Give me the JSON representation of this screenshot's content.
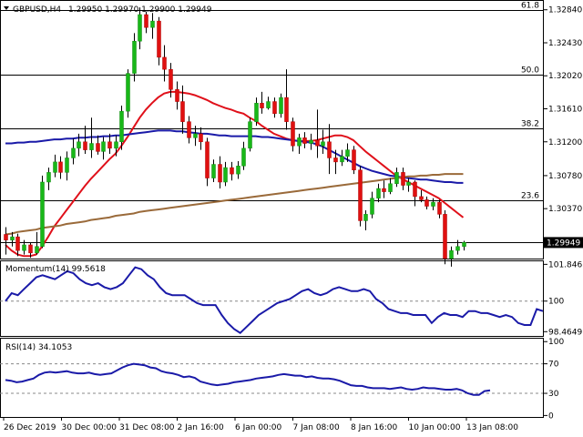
{
  "chart_data": [
    {
      "type": "candlestick",
      "header": {
        "symbol": "GBPUSD,H4",
        "ohlc": "1.29950 1.29970 1.29900 1.29949"
      },
      "y_ticks": [
        "1.32840",
        "1.32430",
        "1.32020",
        "1.31610",
        "1.31200",
        "1.30780",
        "1.30370",
        "1.29950"
      ],
      "ylim": [
        1.2975,
        1.3295
      ],
      "current_price": "1.29949",
      "current_price_value": 1.29949,
      "fib_levels": [
        {
          "label": "61.8",
          "value": 1.3284
        },
        {
          "label": "50.0",
          "value": 1.3203
        },
        {
          "label": "38.2",
          "value": 1.3137
        },
        {
          "label": "23.6",
          "value": 1.3047
        }
      ],
      "support_level": 1.29949,
      "x_ticks": [
        "26 Dec 2019",
        "30 Dec 00:00",
        "31 Dec 08:00",
        "2 Jan 16:00",
        "6 Jan 00:00",
        "7 Jan 08:00",
        "8 Jan 16:00",
        "10 Jan 00:00",
        "13 Jan 08:00"
      ],
      "candles": [
        {
          "o": 1.3005,
          "h": 1.3014,
          "l": 1.298,
          "c": 1.2998
        },
        {
          "o": 1.2998,
          "h": 1.3008,
          "l": 1.299,
          "c": 1.3002
        },
        {
          "o": 1.3002,
          "h": 1.3006,
          "l": 1.2978,
          "c": 1.2985
        },
        {
          "o": 1.2985,
          "h": 1.2998,
          "l": 1.298,
          "c": 1.2992
        },
        {
          "o": 1.2992,
          "h": 1.2995,
          "l": 1.2976,
          "c": 1.2982
        },
        {
          "o": 1.2982,
          "h": 1.3008,
          "l": 1.298,
          "c": 1.299
        },
        {
          "o": 1.299,
          "h": 1.3078,
          "l": 1.2988,
          "c": 1.307
        },
        {
          "o": 1.307,
          "h": 1.3088,
          "l": 1.306,
          "c": 1.3082
        },
        {
          "o": 1.3082,
          "h": 1.3104,
          "l": 1.3076,
          "c": 1.3095
        },
        {
          "o": 1.3095,
          "h": 1.3102,
          "l": 1.3074,
          "c": 1.3082
        },
        {
          "o": 1.3082,
          "h": 1.3108,
          "l": 1.3072,
          "c": 1.31
        },
        {
          "o": 1.31,
          "h": 1.3124,
          "l": 1.3092,
          "c": 1.3112
        },
        {
          "o": 1.3112,
          "h": 1.313,
          "l": 1.3102,
          "c": 1.312
        },
        {
          "o": 1.312,
          "h": 1.314,
          "l": 1.3105,
          "c": 1.311
        },
        {
          "o": 1.311,
          "h": 1.315,
          "l": 1.31,
          "c": 1.3118
        },
        {
          "o": 1.3118,
          "h": 1.3128,
          "l": 1.3104,
          "c": 1.3108
        },
        {
          "o": 1.3108,
          "h": 1.3126,
          "l": 1.3098,
          "c": 1.312
        },
        {
          "o": 1.312,
          "h": 1.313,
          "l": 1.3105,
          "c": 1.3112
        },
        {
          "o": 1.3112,
          "h": 1.3128,
          "l": 1.3102,
          "c": 1.312
        },
        {
          "o": 1.312,
          "h": 1.3165,
          "l": 1.311,
          "c": 1.3158
        },
        {
          "o": 1.3158,
          "h": 1.321,
          "l": 1.315,
          "c": 1.3205
        },
        {
          "o": 1.3205,
          "h": 1.3255,
          "l": 1.3195,
          "c": 1.3245
        },
        {
          "o": 1.3245,
          "h": 1.3287,
          "l": 1.3235,
          "c": 1.3278
        },
        {
          "o": 1.3278,
          "h": 1.3282,
          "l": 1.3255,
          "c": 1.3262
        },
        {
          "o": 1.3262,
          "h": 1.328,
          "l": 1.3248,
          "c": 1.327
        },
        {
          "o": 1.327,
          "h": 1.3275,
          "l": 1.3215,
          "c": 1.3225
        },
        {
          "o": 1.3225,
          "h": 1.324,
          "l": 1.3195,
          "c": 1.321
        },
        {
          "o": 1.321,
          "h": 1.3218,
          "l": 1.3175,
          "c": 1.3185
        },
        {
          "o": 1.3185,
          "h": 1.3195,
          "l": 1.316,
          "c": 1.317
        },
        {
          "o": 1.317,
          "h": 1.319,
          "l": 1.313,
          "c": 1.3145
        },
        {
          "o": 1.3145,
          "h": 1.3152,
          "l": 1.3118,
          "c": 1.3125
        },
        {
          "o": 1.3125,
          "h": 1.314,
          "l": 1.3115,
          "c": 1.313
        },
        {
          "o": 1.313,
          "h": 1.3138,
          "l": 1.311,
          "c": 1.312
        },
        {
          "o": 1.312,
          "h": 1.3125,
          "l": 1.3065,
          "c": 1.3075
        },
        {
          "o": 1.3075,
          "h": 1.3098,
          "l": 1.307,
          "c": 1.3092
        },
        {
          "o": 1.3092,
          "h": 1.3102,
          "l": 1.3062,
          "c": 1.307
        },
        {
          "o": 1.307,
          "h": 1.3095,
          "l": 1.3065,
          "c": 1.3088
        },
        {
          "o": 1.3088,
          "h": 1.3095,
          "l": 1.3072,
          "c": 1.308
        },
        {
          "o": 1.308,
          "h": 1.3096,
          "l": 1.3074,
          "c": 1.309
        },
        {
          "o": 1.309,
          "h": 1.312,
          "l": 1.3085,
          "c": 1.3112
        },
        {
          "o": 1.3112,
          "h": 1.315,
          "l": 1.3108,
          "c": 1.3145
        },
        {
          "o": 1.3145,
          "h": 1.3175,
          "l": 1.314,
          "c": 1.3168
        },
        {
          "o": 1.3168,
          "h": 1.3182,
          "l": 1.3155,
          "c": 1.3162
        },
        {
          "o": 1.3162,
          "h": 1.3176,
          "l": 1.316,
          "c": 1.317
        },
        {
          "o": 1.317,
          "h": 1.3175,
          "l": 1.315,
          "c": 1.3155
        },
        {
          "o": 1.3155,
          "h": 1.318,
          "l": 1.315,
          "c": 1.3175
        },
        {
          "o": 1.3175,
          "h": 1.321,
          "l": 1.3135,
          "c": 1.3145
        },
        {
          "o": 1.3145,
          "h": 1.315,
          "l": 1.3108,
          "c": 1.3115
        },
        {
          "o": 1.3115,
          "h": 1.313,
          "l": 1.3105,
          "c": 1.3125
        },
        {
          "o": 1.3125,
          "h": 1.3132,
          "l": 1.3112,
          "c": 1.3118
        },
        {
          "o": 1.3118,
          "h": 1.313,
          "l": 1.311,
          "c": 1.3122
        },
        {
          "o": 1.3122,
          "h": 1.316,
          "l": 1.31,
          "c": 1.3115
        },
        {
          "o": 1.3115,
          "h": 1.3135,
          "l": 1.3105,
          "c": 1.312
        },
        {
          "o": 1.312,
          "h": 1.3142,
          "l": 1.308,
          "c": 1.31
        },
        {
          "o": 1.31,
          "h": 1.311,
          "l": 1.308,
          "c": 1.3095
        },
        {
          "o": 1.3095,
          "h": 1.311,
          "l": 1.309,
          "c": 1.3102
        },
        {
          "o": 1.3102,
          "h": 1.3118,
          "l": 1.3095,
          "c": 1.311
        },
        {
          "o": 1.311,
          "h": 1.3115,
          "l": 1.308,
          "c": 1.3085
        },
        {
          "o": 1.3085,
          "h": 1.309,
          "l": 1.3015,
          "c": 1.3022
        },
        {
          "o": 1.3022,
          "h": 1.3035,
          "l": 1.301,
          "c": 1.303
        },
        {
          "o": 1.303,
          "h": 1.3058,
          "l": 1.3025,
          "c": 1.305
        },
        {
          "o": 1.305,
          "h": 1.3068,
          "l": 1.3045,
          "c": 1.3062
        },
        {
          "o": 1.3062,
          "h": 1.3072,
          "l": 1.305,
          "c": 1.3058
        },
        {
          "o": 1.3058,
          "h": 1.3075,
          "l": 1.3055,
          "c": 1.3068
        },
        {
          "o": 1.3068,
          "h": 1.3088,
          "l": 1.3064,
          "c": 1.3082
        },
        {
          "o": 1.3082,
          "h": 1.3088,
          "l": 1.306,
          "c": 1.3066
        },
        {
          "o": 1.3066,
          "h": 1.3075,
          "l": 1.3058,
          "c": 1.307
        },
        {
          "o": 1.307,
          "h": 1.3072,
          "l": 1.304,
          "c": 1.3052
        },
        {
          "o": 1.3052,
          "h": 1.306,
          "l": 1.3045,
          "c": 1.3048
        },
        {
          "o": 1.3048,
          "h": 1.3052,
          "l": 1.3036,
          "c": 1.304
        },
        {
          "o": 1.304,
          "h": 1.305,
          "l": 1.3035,
          "c": 1.3045
        },
        {
          "o": 1.3045,
          "h": 1.3048,
          "l": 1.3025,
          "c": 1.303
        },
        {
          "o": 1.303,
          "h": 1.3035,
          "l": 1.2968,
          "c": 1.2975
        },
        {
          "o": 1.2975,
          "h": 1.299,
          "l": 1.2965,
          "c": 1.2985
        },
        {
          "o": 1.2985,
          "h": 1.2998,
          "l": 1.298,
          "c": 1.299
        },
        {
          "o": 1.299,
          "h": 1.2997,
          "l": 1.2985,
          "c": 1.2995
        }
      ],
      "moving_averages": [
        {
          "color": "#e0101a",
          "values": [
            1.2992,
            1.2985,
            1.298,
            1.2978,
            1.2978,
            1.298,
            1.299,
            1.3002,
            1.3015,
            1.3025,
            1.3035,
            1.3045,
            1.3055,
            1.3065,
            1.3074,
            1.3082,
            1.309,
            1.3098,
            1.3105,
            1.3115,
            1.3126,
            1.3138,
            1.315,
            1.316,
            1.3168,
            1.3175,
            1.318,
            1.3182,
            1.3182,
            1.3181,
            1.318,
            1.3178,
            1.3175,
            1.3172,
            1.3168,
            1.3165,
            1.3162,
            1.316,
            1.3157,
            1.3155,
            1.315,
            1.3146,
            1.314,
            1.3135,
            1.313,
            1.3127,
            1.3124,
            1.3122,
            1.3121,
            1.3121,
            1.3121,
            1.3122,
            1.3124,
            1.3126,
            1.3128,
            1.3128,
            1.3126,
            1.3122,
            1.3115,
            1.3108,
            1.3102,
            1.3096,
            1.309,
            1.3084,
            1.3078,
            1.3074,
            1.307,
            1.3066,
            1.3062,
            1.3058,
            1.3054,
            1.305,
            1.3044,
            1.3038,
            1.3032,
            1.3026
          ]
        },
        {
          "color": "#1a1aa8",
          "values": [
            1.3118,
            1.3118,
            1.3119,
            1.3119,
            1.312,
            1.312,
            1.3121,
            1.3122,
            1.3123,
            1.3123,
            1.3124,
            1.3124,
            1.3125,
            1.3125,
            1.3126,
            1.3126,
            1.3127,
            1.3127,
            1.3128,
            1.3128,
            1.3129,
            1.313,
            1.3131,
            1.3132,
            1.3133,
            1.3134,
            1.3134,
            1.3134,
            1.3133,
            1.3133,
            1.3132,
            1.3131,
            1.313,
            1.313,
            1.3129,
            1.3128,
            1.3128,
            1.3127,
            1.3127,
            1.3127,
            1.3127,
            1.3127,
            1.3126,
            1.3126,
            1.3125,
            1.3124,
            1.3123,
            1.3122,
            1.3121,
            1.312,
            1.3119,
            1.3117,
            1.3114,
            1.311,
            1.3106,
            1.3102,
            1.3098,
            1.3094,
            1.309,
            1.3087,
            1.3084,
            1.3082,
            1.308,
            1.3078,
            1.3077,
            1.3076,
            1.3075,
            1.3074,
            1.3073,
            1.3073,
            1.3072,
            1.3071,
            1.307,
            1.307,
            1.3069,
            1.3069
          ]
        },
        {
          "color": "#9a6a3a",
          "values": [
            1.3005,
            1.3006,
            1.3008,
            1.3009,
            1.301,
            1.3011,
            1.3013,
            1.3014,
            1.3015,
            1.3016,
            1.3018,
            1.3019,
            1.302,
            1.3021,
            1.3023,
            1.3024,
            1.3025,
            1.3026,
            1.3028,
            1.3029,
            1.303,
            1.3031,
            1.3033,
            1.3034,
            1.3035,
            1.3036,
            1.3037,
            1.3038,
            1.3039,
            1.304,
            1.3041,
            1.3042,
            1.3043,
            1.3044,
            1.3045,
            1.3046,
            1.3047,
            1.3048,
            1.3049,
            1.305,
            1.3051,
            1.3052,
            1.3053,
            1.3054,
            1.3055,
            1.3056,
            1.3057,
            1.3058,
            1.3059,
            1.306,
            1.3061,
            1.3062,
            1.3063,
            1.3064,
            1.3065,
            1.3066,
            1.3067,
            1.3068,
            1.3069,
            1.307,
            1.3071,
            1.3072,
            1.3073,
            1.3074,
            1.3075,
            1.3076,
            1.3077,
            1.3077,
            1.3078,
            1.3078,
            1.3079,
            1.3079,
            1.308,
            1.308,
            1.308,
            1.308
          ]
        }
      ]
    },
    {
      "type": "line",
      "title": "Momentum(14) 99.5618",
      "y_ticks": [
        "101.8467",
        "100",
        "98.4649"
      ],
      "ylim": [
        98.25,
        102.0
      ],
      "reference_level": 100,
      "series": [
        {
          "color": "#1a1aa8",
          "values": [
            100.0,
            100.4,
            100.3,
            100.6,
            100.9,
            101.2,
            101.3,
            101.2,
            101.1,
            101.3,
            101.5,
            101.4,
            101.1,
            100.9,
            100.8,
            100.9,
            100.7,
            100.6,
            100.7,
            100.9,
            101.3,
            101.7,
            101.6,
            101.3,
            101.1,
            100.7,
            100.4,
            100.3,
            100.3,
            100.3,
            100.1,
            99.9,
            99.8,
            99.8,
            99.8,
            99.3,
            98.9,
            98.6,
            98.4,
            98.7,
            99.0,
            99.3,
            99.5,
            99.7,
            99.9,
            100.0,
            100.1,
            100.3,
            100.5,
            100.6,
            100.4,
            100.3,
            100.4,
            100.6,
            100.7,
            100.6,
            100.5,
            100.5,
            100.6,
            100.5,
            100.1,
            99.9,
            99.6,
            99.5,
            99.4,
            99.4,
            99.3,
            99.3,
            99.3,
            98.9,
            99.2,
            99.4,
            99.3,
            99.3,
            99.2,
            99.5,
            99.5,
            99.4,
            99.4,
            99.3,
            99.2,
            99.3,
            99.2,
            98.9,
            98.8,
            98.8,
            99.6,
            99.5
          ]
        }
      ]
    },
    {
      "type": "line",
      "title": "RSI(14) 34.1053",
      "y_ticks": [
        "100",
        "70",
        "30",
        "0"
      ],
      "ylim": [
        0,
        100
      ],
      "levels": [
        70,
        30
      ],
      "series": [
        {
          "color": "#1a1aa8",
          "values": [
            48,
            47,
            45,
            46,
            48,
            50,
            55,
            58,
            59,
            58,
            59,
            60,
            58,
            57,
            57,
            58,
            56,
            55,
            56,
            57,
            61,
            65,
            68,
            70,
            69,
            68,
            65,
            64,
            60,
            58,
            57,
            55,
            52,
            53,
            51,
            46,
            44,
            42,
            41,
            42,
            43,
            45,
            46,
            47,
            48,
            50,
            51,
            52,
            53,
            55,
            56,
            55,
            54,
            54,
            52,
            53,
            51,
            50,
            50,
            49,
            47,
            44,
            41,
            40,
            40,
            38,
            37,
            37,
            37,
            36,
            37,
            38,
            36,
            35,
            36,
            38,
            37,
            37,
            36,
            35,
            35,
            36,
            34,
            30,
            28,
            28,
            33,
            34
          ]
        }
      ]
    }
  ]
}
